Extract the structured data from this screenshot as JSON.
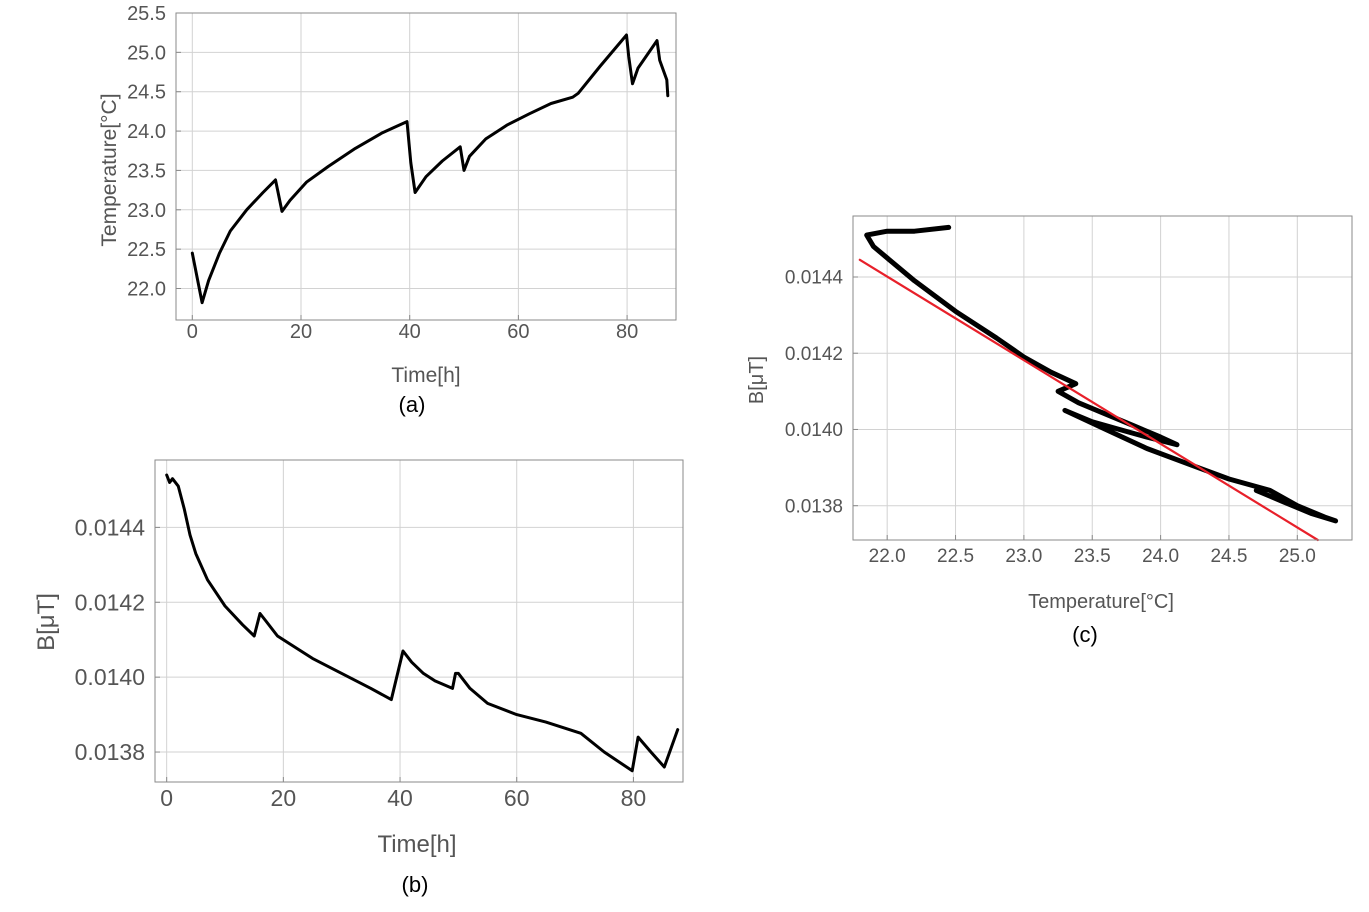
{
  "chart_data": [
    {
      "type": "line",
      "caption": "(a)",
      "xlabel": "Time[h]",
      "ylabel": "Temperature[°C]",
      "xlim": [
        -3,
        89
      ],
      "ylim": [
        21.6,
        25.5
      ],
      "xticks": [
        0,
        20,
        40,
        60,
        80
      ],
      "yticks": [
        22.0,
        22.5,
        23.0,
        23.5,
        24.0,
        24.5,
        25.0,
        25.5
      ],
      "grid": true,
      "series": [
        {
          "x": [
            0,
            1.8,
            3,
            5,
            7,
            10,
            13,
            15.3,
            16.5,
            18,
            21,
            25,
            30,
            35,
            39.5,
            40.2,
            41,
            43,
            46,
            49.3,
            50,
            51,
            54,
            58,
            62,
            66,
            70,
            71,
            75,
            79.9,
            80.3,
            81,
            82,
            85.5,
            86,
            87.3,
            87.5
          ],
          "y": [
            22.45,
            21.82,
            22.1,
            22.45,
            22.73,
            23.0,
            23.22,
            23.38,
            22.98,
            23.12,
            23.35,
            23.55,
            23.78,
            23.98,
            24.12,
            23.6,
            23.22,
            23.42,
            23.62,
            23.8,
            23.5,
            23.68,
            23.9,
            24.08,
            24.22,
            24.35,
            24.43,
            24.48,
            24.82,
            25.22,
            24.95,
            24.6,
            24.8,
            25.15,
            24.9,
            24.65,
            24.45
          ]
        }
      ]
    },
    {
      "type": "line",
      "caption": "(b)",
      "xlabel": "Time[h]",
      "ylabel": "B[μT]",
      "xlim": [
        -2,
        88.5
      ],
      "ylim": [
        0.01372,
        0.01458
      ],
      "xticks": [
        0,
        20,
        40,
        60,
        80
      ],
      "yticks": [
        0.0138,
        0.014,
        0.0142,
        0.0144
      ],
      "grid": true,
      "series": [
        {
          "x": [
            0,
            0.5,
            1,
            2,
            3,
            4,
            5,
            7,
            10,
            13,
            15,
            16,
            17,
            19,
            21,
            25,
            30,
            35,
            38.5,
            40.5,
            42,
            44,
            46,
            49,
            49.5,
            50,
            52,
            55,
            60,
            65,
            71,
            75,
            79.8,
            80.8,
            83,
            85.3,
            87.6
          ],
          "y": [
            0.01454,
            0.01452,
            0.01453,
            0.01451,
            0.01445,
            0.01438,
            0.01433,
            0.01426,
            0.01419,
            0.01414,
            0.01411,
            0.01417,
            0.01415,
            0.01411,
            0.01409,
            0.01405,
            0.01401,
            0.01397,
            0.01394,
            0.01407,
            0.01404,
            0.01401,
            0.01399,
            0.01397,
            0.01401,
            0.01401,
            0.01397,
            0.01393,
            0.0139,
            0.01388,
            0.01385,
            0.0138,
            0.01375,
            0.01384,
            0.0138,
            0.01376,
            0.01386
          ]
        }
      ]
    },
    {
      "type": "scatter",
      "caption": "(c)",
      "xlabel": "Temperature[°C]",
      "ylabel": "B[μT]",
      "xlim": [
        21.75,
        25.4
      ],
      "ylim": [
        0.01371,
        0.01456
      ],
      "xticks": [
        22.0,
        22.5,
        23.0,
        23.5,
        24.0,
        24.5,
        25.0
      ],
      "yticks": [
        0.0138,
        0.014,
        0.0142,
        0.0144
      ],
      "grid": true,
      "series": [
        {
          "x": [
            22.45,
            22.2,
            22.0,
            21.85,
            21.9,
            22.2,
            22.5,
            22.8,
            23.0,
            23.2,
            23.38,
            23.25,
            23.4,
            23.6,
            23.8,
            24.0,
            24.12,
            23.9,
            23.7,
            23.5,
            23.3,
            23.6,
            23.9,
            24.2,
            24.5,
            24.8,
            25.0,
            25.2,
            25.28,
            25.1,
            24.9,
            24.7
          ],
          "y": [
            0.01453,
            0.01452,
            0.01452,
            0.01451,
            0.01448,
            0.01439,
            0.01431,
            0.01424,
            0.01419,
            0.01415,
            0.01412,
            0.0141,
            0.01407,
            0.01404,
            0.01401,
            0.01398,
            0.01396,
            0.01398,
            0.014,
            0.01402,
            0.01405,
            0.014,
            0.01395,
            0.01391,
            0.01387,
            0.01384,
            0.0138,
            0.01377,
            0.01376,
            0.01378,
            0.01381,
            0.01384
          ]
        },
        {
          "x": [
            21.8,
            25.15
          ],
          "y": [
            0.014445,
            0.01371
          ],
          "color": "#e8202a"
        }
      ]
    }
  ]
}
